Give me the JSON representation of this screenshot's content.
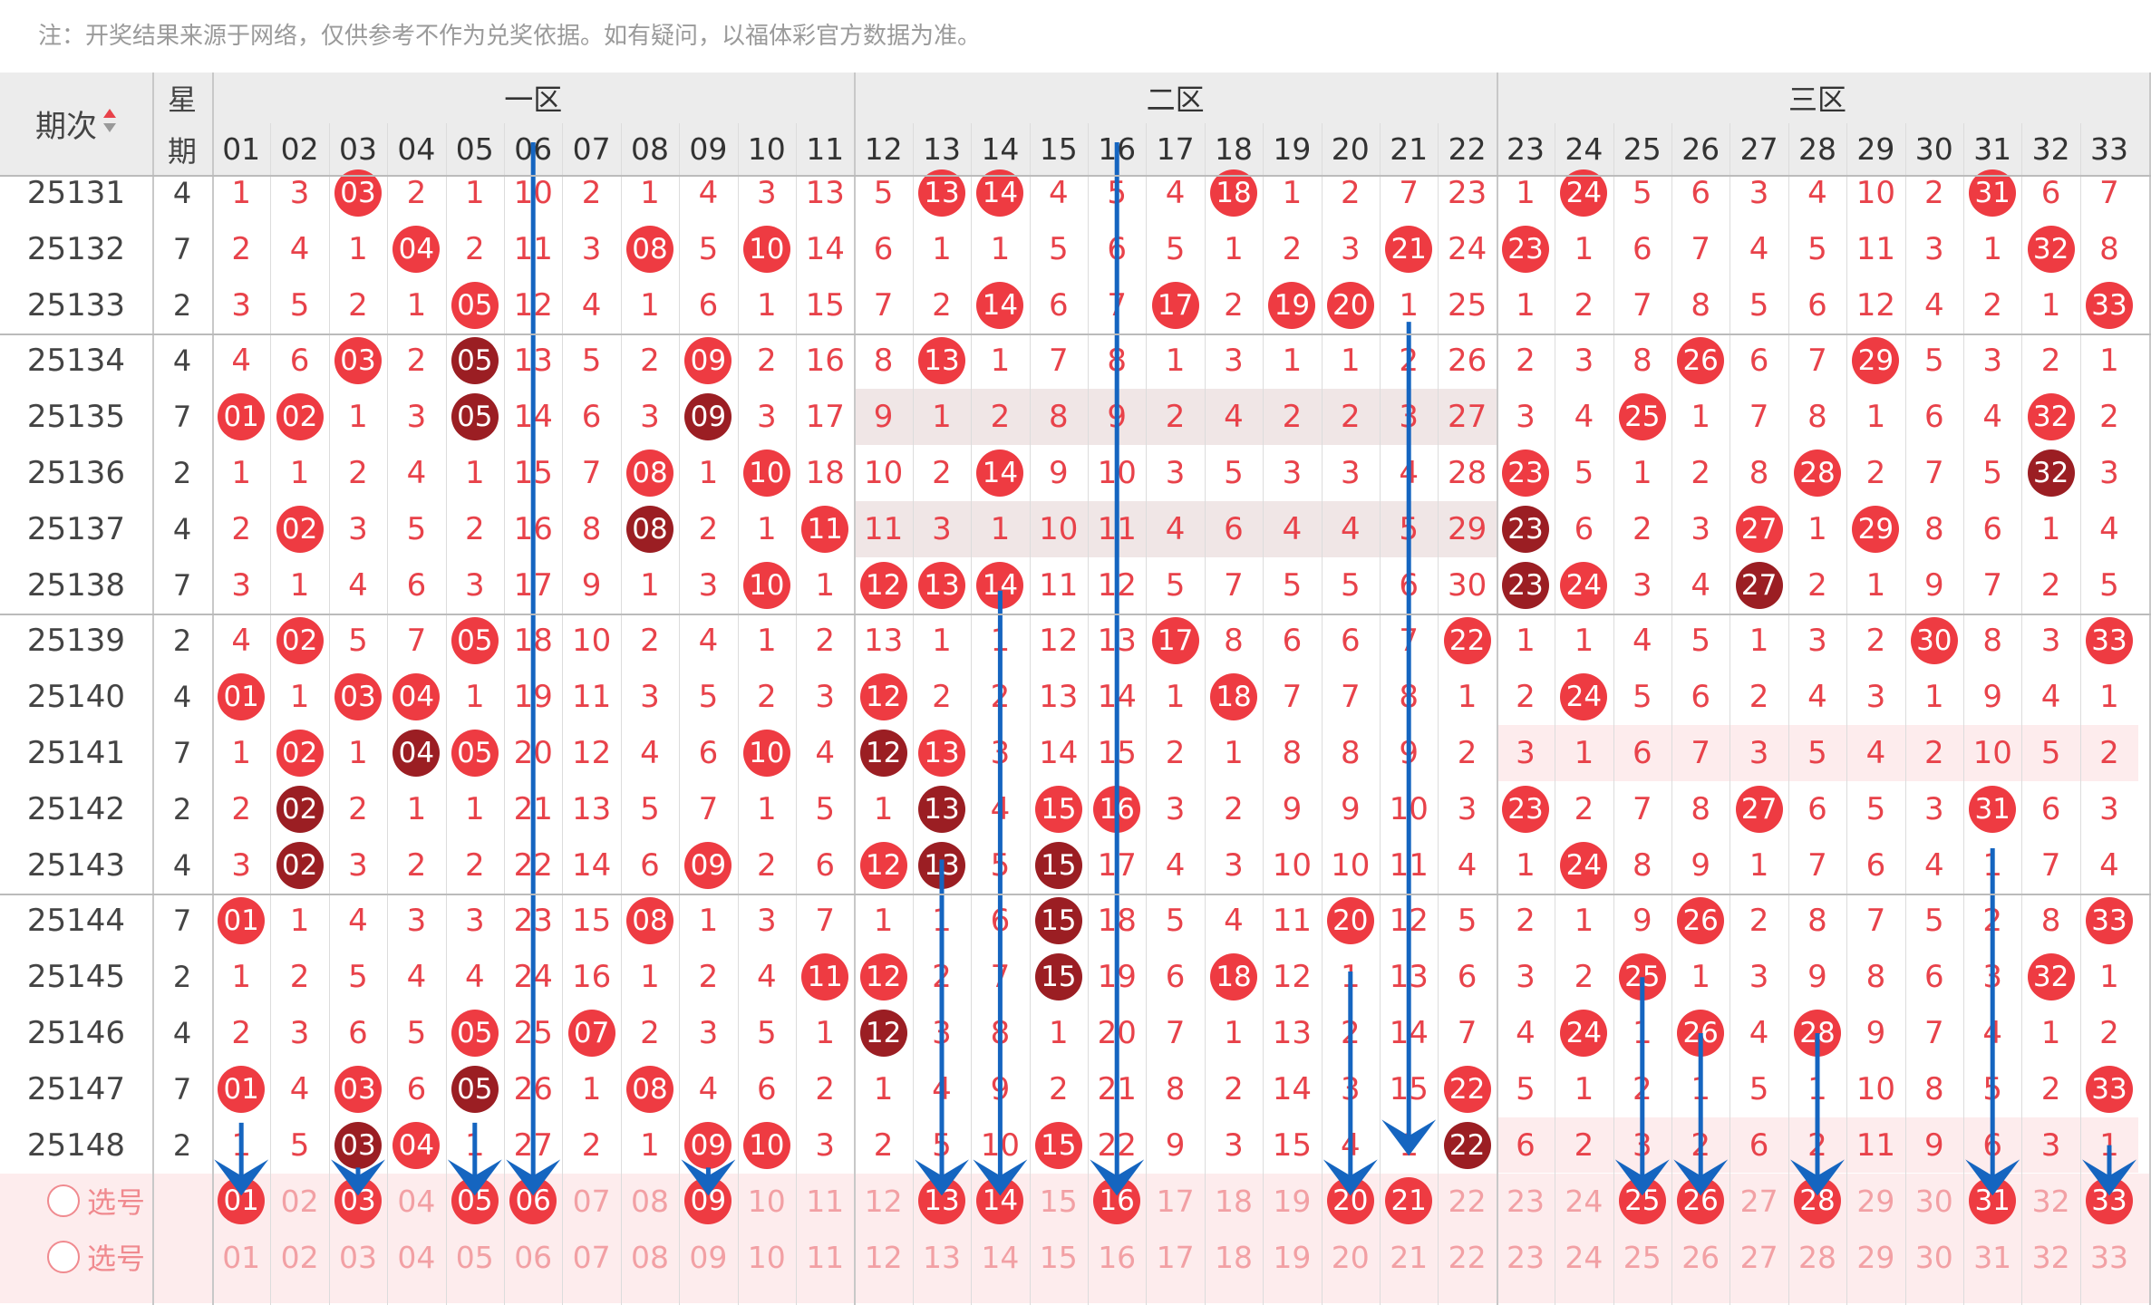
{
  "note": "注：开奖结果来源于网络，仅供参考不作为兑奖依据。如有疑问，以福体彩官方数据为准。",
  "header": {
    "issue_label": "期次",
    "week_label_1": "星",
    "week_label_2": "期",
    "zones": [
      "一区",
      "二区",
      "三区"
    ],
    "columns": [
      "01",
      "02",
      "03",
      "04",
      "05",
      "06",
      "07",
      "08",
      "09",
      "10",
      "11",
      "12",
      "13",
      "14",
      "15",
      "16",
      "17",
      "18",
      "19",
      "20",
      "21",
      "22",
      "23",
      "24",
      "25",
      "26",
      "27",
      "28",
      "29",
      "30",
      "31",
      "32",
      "33"
    ]
  },
  "rows": [
    {
      "issue": "25131",
      "week": "4",
      "cells": [
        "1",
        "3",
        "03",
        "2",
        "1",
        "10",
        "2",
        "1",
        "4",
        "3",
        "13",
        "5",
        "13",
        "14",
        "4",
        "5",
        "4",
        "18",
        "1",
        "2",
        "7",
        "23",
        "1",
        "24",
        "5",
        "6",
        "3",
        "4",
        "10",
        "2",
        "31",
        "6",
        "7"
      ]
    },
    {
      "issue": "25132",
      "week": "7",
      "cells": [
        "2",
        "4",
        "1",
        "04",
        "2",
        "11",
        "3",
        "08",
        "5",
        "10",
        "14",
        "6",
        "1",
        "1",
        "5",
        "6",
        "5",
        "1",
        "2",
        "3",
        "21",
        "24",
        "23",
        "1",
        "6",
        "7",
        "4",
        "5",
        "11",
        "3",
        "1",
        "32",
        "8"
      ]
    },
    {
      "issue": "25133",
      "week": "2",
      "cells": [
        "3",
        "5",
        "2",
        "1",
        "05",
        "12",
        "4",
        "1",
        "6",
        "1",
        "15",
        "7",
        "2",
        "14",
        "6",
        "7",
        "17",
        "2",
        "19",
        "20",
        "1",
        "25",
        "1",
        "2",
        "7",
        "8",
        "5",
        "6",
        "12",
        "4",
        "2",
        "1",
        "33"
      ]
    },
    {
      "issue": "25134",
      "week": "4",
      "cells": [
        "4",
        "6",
        "03",
        "2",
        "05",
        "13",
        "5",
        "2",
        "09",
        "2",
        "16",
        "8",
        "13",
        "1",
        "7",
        "8",
        "1",
        "3",
        "1",
        "1",
        "2",
        "26",
        "2",
        "3",
        "8",
        "26",
        "6",
        "7",
        "29",
        "5",
        "3",
        "2",
        "1"
      ]
    },
    {
      "issue": "25135",
      "week": "7",
      "cells": [
        "01",
        "02",
        "1",
        "3",
        "05",
        "14",
        "6",
        "3",
        "09",
        "3",
        "17",
        "9",
        "1",
        "2",
        "8",
        "9",
        "2",
        "4",
        "2",
        "2",
        "3",
        "27",
        "3",
        "4",
        "25",
        "1",
        "7",
        "8",
        "1",
        "6",
        "4",
        "32",
        "2"
      ]
    },
    {
      "issue": "25136",
      "week": "2",
      "cells": [
        "1",
        "1",
        "2",
        "4",
        "1",
        "15",
        "7",
        "08",
        "1",
        "10",
        "18",
        "10",
        "2",
        "14",
        "9",
        "10",
        "3",
        "5",
        "3",
        "3",
        "4",
        "28",
        "23",
        "5",
        "1",
        "2",
        "8",
        "28",
        "2",
        "7",
        "5",
        "32",
        "3"
      ]
    },
    {
      "issue": "25137",
      "week": "4",
      "cells": [
        "2",
        "02",
        "3",
        "5",
        "2",
        "16",
        "8",
        "08",
        "2",
        "1",
        "11",
        "11",
        "3",
        "1",
        "10",
        "11",
        "4",
        "6",
        "4",
        "4",
        "5",
        "29",
        "23",
        "6",
        "2",
        "3",
        "27",
        "1",
        "29",
        "8",
        "6",
        "1",
        "4"
      ]
    },
    {
      "issue": "25138",
      "week": "7",
      "cells": [
        "3",
        "1",
        "4",
        "6",
        "3",
        "17",
        "9",
        "1",
        "3",
        "10",
        "1",
        "12",
        "13",
        "14",
        "11",
        "12",
        "5",
        "7",
        "5",
        "5",
        "6",
        "30",
        "23",
        "24",
        "3",
        "4",
        "27",
        "2",
        "1",
        "9",
        "7",
        "2",
        "5"
      ]
    },
    {
      "issue": "25139",
      "week": "2",
      "cells": [
        "4",
        "02",
        "5",
        "7",
        "05",
        "18",
        "10",
        "2",
        "4",
        "1",
        "2",
        "13",
        "1",
        "1",
        "12",
        "13",
        "17",
        "8",
        "6",
        "6",
        "7",
        "22",
        "1",
        "1",
        "4",
        "5",
        "1",
        "3",
        "2",
        "30",
        "8",
        "3",
        "33"
      ]
    },
    {
      "issue": "25140",
      "week": "4",
      "cells": [
        "01",
        "1",
        "03",
        "04",
        "1",
        "19",
        "11",
        "3",
        "5",
        "2",
        "3",
        "12",
        "2",
        "2",
        "13",
        "14",
        "1",
        "18",
        "7",
        "7",
        "8",
        "1",
        "2",
        "24",
        "5",
        "6",
        "2",
        "4",
        "3",
        "1",
        "9",
        "4",
        "1"
      ]
    },
    {
      "issue": "25141",
      "week": "7",
      "cells": [
        "1",
        "02",
        "1",
        "04",
        "05",
        "20",
        "12",
        "4",
        "6",
        "10",
        "4",
        "12",
        "13",
        "3",
        "14",
        "15",
        "2",
        "1",
        "8",
        "8",
        "9",
        "2",
        "3",
        "1",
        "6",
        "7",
        "3",
        "5",
        "4",
        "2",
        "10",
        "5",
        "2"
      ]
    },
    {
      "issue": "25142",
      "week": "2",
      "cells": [
        "2",
        "02",
        "2",
        "1",
        "1",
        "21",
        "13",
        "5",
        "7",
        "1",
        "5",
        "1",
        "13",
        "4",
        "15",
        "16",
        "3",
        "2",
        "9",
        "9",
        "10",
        "3",
        "23",
        "2",
        "7",
        "8",
        "27",
        "6",
        "5",
        "3",
        "31",
        "6",
        "3"
      ]
    },
    {
      "issue": "25143",
      "week": "4",
      "cells": [
        "3",
        "02",
        "3",
        "2",
        "2",
        "22",
        "14",
        "6",
        "09",
        "2",
        "6",
        "12",
        "13",
        "5",
        "15",
        "17",
        "4",
        "3",
        "10",
        "10",
        "11",
        "4",
        "1",
        "24",
        "8",
        "9",
        "1",
        "7",
        "6",
        "4",
        "1",
        "7",
        "4"
      ]
    },
    {
      "issue": "25144",
      "week": "7",
      "cells": [
        "01",
        "1",
        "4",
        "3",
        "3",
        "23",
        "15",
        "08",
        "1",
        "3",
        "7",
        "1",
        "1",
        "6",
        "15",
        "18",
        "5",
        "4",
        "11",
        "20",
        "12",
        "5",
        "2",
        "1",
        "9",
        "26",
        "2",
        "8",
        "7",
        "5",
        "2",
        "8",
        "33"
      ]
    },
    {
      "issue": "25145",
      "week": "2",
      "cells": [
        "1",
        "2",
        "5",
        "4",
        "4",
        "24",
        "16",
        "1",
        "2",
        "4",
        "11",
        "12",
        "2",
        "7",
        "15",
        "19",
        "6",
        "18",
        "12",
        "1",
        "13",
        "6",
        "3",
        "2",
        "25",
        "1",
        "3",
        "9",
        "8",
        "6",
        "3",
        "32",
        "1"
      ]
    },
    {
      "issue": "25146",
      "week": "4",
      "cells": [
        "2",
        "3",
        "6",
        "5",
        "05",
        "25",
        "07",
        "2",
        "3",
        "5",
        "1",
        "12",
        "3",
        "8",
        "1",
        "20",
        "7",
        "1",
        "13",
        "2",
        "14",
        "7",
        "4",
        "24",
        "1",
        "26",
        "4",
        "28",
        "9",
        "7",
        "4",
        "1",
        "2"
      ]
    },
    {
      "issue": "25147",
      "week": "7",
      "cells": [
        "01",
        "4",
        "03",
        "6",
        "05",
        "26",
        "1",
        "08",
        "4",
        "6",
        "2",
        "1",
        "4",
        "9",
        "2",
        "21",
        "8",
        "2",
        "14",
        "3",
        "15",
        "22",
        "5",
        "1",
        "2",
        "1",
        "5",
        "1",
        "10",
        "8",
        "5",
        "2",
        "33"
      ]
    },
    {
      "issue": "25148",
      "week": "2",
      "cells": [
        "1",
        "5",
        "03",
        "04",
        "1",
        "27",
        "2",
        "1",
        "09",
        "10",
        "3",
        "2",
        "5",
        "10",
        "15",
        "22",
        "9",
        "3",
        "15",
        "4",
        "1",
        "22",
        "6",
        "2",
        "3",
        "2",
        "6",
        "2",
        "11",
        "9",
        "6",
        "3",
        "1"
      ]
    }
  ],
  "selection_rows": [
    {
      "label": "选号",
      "picked": [
        "01",
        "03",
        "05",
        "06",
        "09",
        "13",
        "14",
        "16",
        "20",
        "21",
        "25",
        "26",
        "28",
        "31",
        "33"
      ]
    },
    {
      "label": "选号",
      "picked": []
    }
  ],
  "colors": {
    "red": "#ee3b42",
    "dark_red": "#9b1e23",
    "arrow": "#1565c0",
    "highlight": "#f0e6e6",
    "pink_bg": "#fdeced"
  }
}
